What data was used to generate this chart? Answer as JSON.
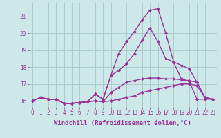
{
  "x": [
    0,
    1,
    2,
    3,
    4,
    5,
    6,
    7,
    8,
    9,
    10,
    11,
    12,
    13,
    14,
    15,
    16,
    17,
    18,
    19,
    20,
    21,
    22,
    23
  ],
  "line1": [
    16.0,
    16.2,
    16.1,
    16.1,
    15.85,
    15.85,
    15.9,
    15.95,
    16.0,
    15.95,
    16.0,
    16.1,
    16.2,
    16.3,
    16.5,
    16.6,
    16.7,
    16.8,
    16.9,
    17.0,
    17.0,
    16.9,
    16.2,
    16.1
  ],
  "line2": [
    16.0,
    16.2,
    16.1,
    16.1,
    15.85,
    15.85,
    15.9,
    15.95,
    16.0,
    15.95,
    16.5,
    16.8,
    17.1,
    17.2,
    17.3,
    17.35,
    17.35,
    17.3,
    17.3,
    17.25,
    17.2,
    17.1,
    16.2,
    16.1
  ],
  "line3": [
    16.0,
    16.2,
    16.1,
    16.1,
    15.85,
    15.85,
    15.9,
    15.95,
    16.4,
    16.1,
    17.5,
    17.8,
    18.2,
    18.8,
    19.6,
    20.3,
    19.5,
    18.5,
    18.3,
    18.1,
    17.9,
    17.1,
    16.2,
    16.1
  ],
  "line4": [
    16.0,
    16.2,
    16.1,
    16.1,
    15.85,
    15.85,
    15.9,
    15.95,
    16.4,
    16.1,
    17.5,
    18.8,
    19.5,
    20.1,
    20.8,
    21.35,
    21.45,
    20.0,
    18.3,
    17.3,
    17.15,
    16.1,
    16.1,
    16.1
  ],
  "line_color": "#993399",
  "bg_color": "#cce8e8",
  "grid_color": "#aacccc",
  "xlabel": "Windchill (Refroidissement éolien,°C)",
  "ylim": [
    15.6,
    21.8
  ],
  "xlim": [
    -0.5,
    23.5
  ],
  "yticks": [
    16,
    17,
    18,
    19,
    20,
    21
  ],
  "xticks": [
    0,
    1,
    2,
    3,
    4,
    5,
    6,
    7,
    8,
    9,
    10,
    11,
    12,
    13,
    14,
    15,
    16,
    17,
    18,
    19,
    20,
    21,
    22,
    23
  ],
  "marker": "D",
  "markersize": 2,
  "linewidth": 1.0,
  "tick_fontsize": 5.5,
  "xlabel_fontsize": 6.5
}
